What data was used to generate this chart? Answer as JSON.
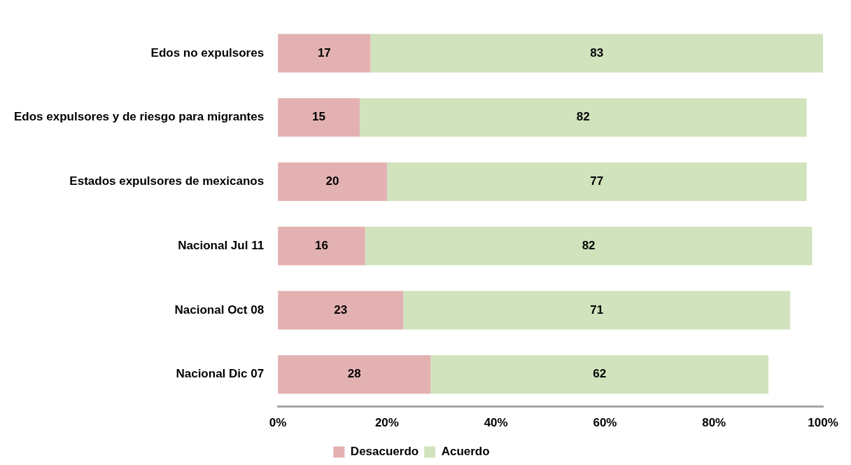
{
  "chart_data": {
    "type": "bar",
    "orientation": "horizontal",
    "stacked": true,
    "categories": [
      "Edos no expulsores",
      "Edos expulsores y de riesgo para migrantes",
      "Estados expulsores de mexicanos",
      "Nacional Jul 11",
      "Nacional Oct 08",
      "Nacional Dic 07"
    ],
    "series": [
      {
        "name": "Desacuerdo",
        "color": "#e3b1b1",
        "values": [
          17,
          15,
          20,
          16,
          23,
          28
        ]
      },
      {
        "name": "Acuerdo",
        "color": "#d0e3bd",
        "values": [
          83,
          82,
          77,
          82,
          71,
          62
        ]
      }
    ],
    "xlim": [
      0,
      100
    ],
    "xticks": [
      {
        "value": 0,
        "label": "0%"
      },
      {
        "value": 20,
        "label": "20%"
      },
      {
        "value": 40,
        "label": "40%"
      },
      {
        "value": 60,
        "label": "60%"
      },
      {
        "value": 80,
        "label": "80%"
      },
      {
        "value": 100,
        "label": "100%"
      }
    ],
    "data_labels": true,
    "grid": false,
    "legend": "bottom"
  }
}
